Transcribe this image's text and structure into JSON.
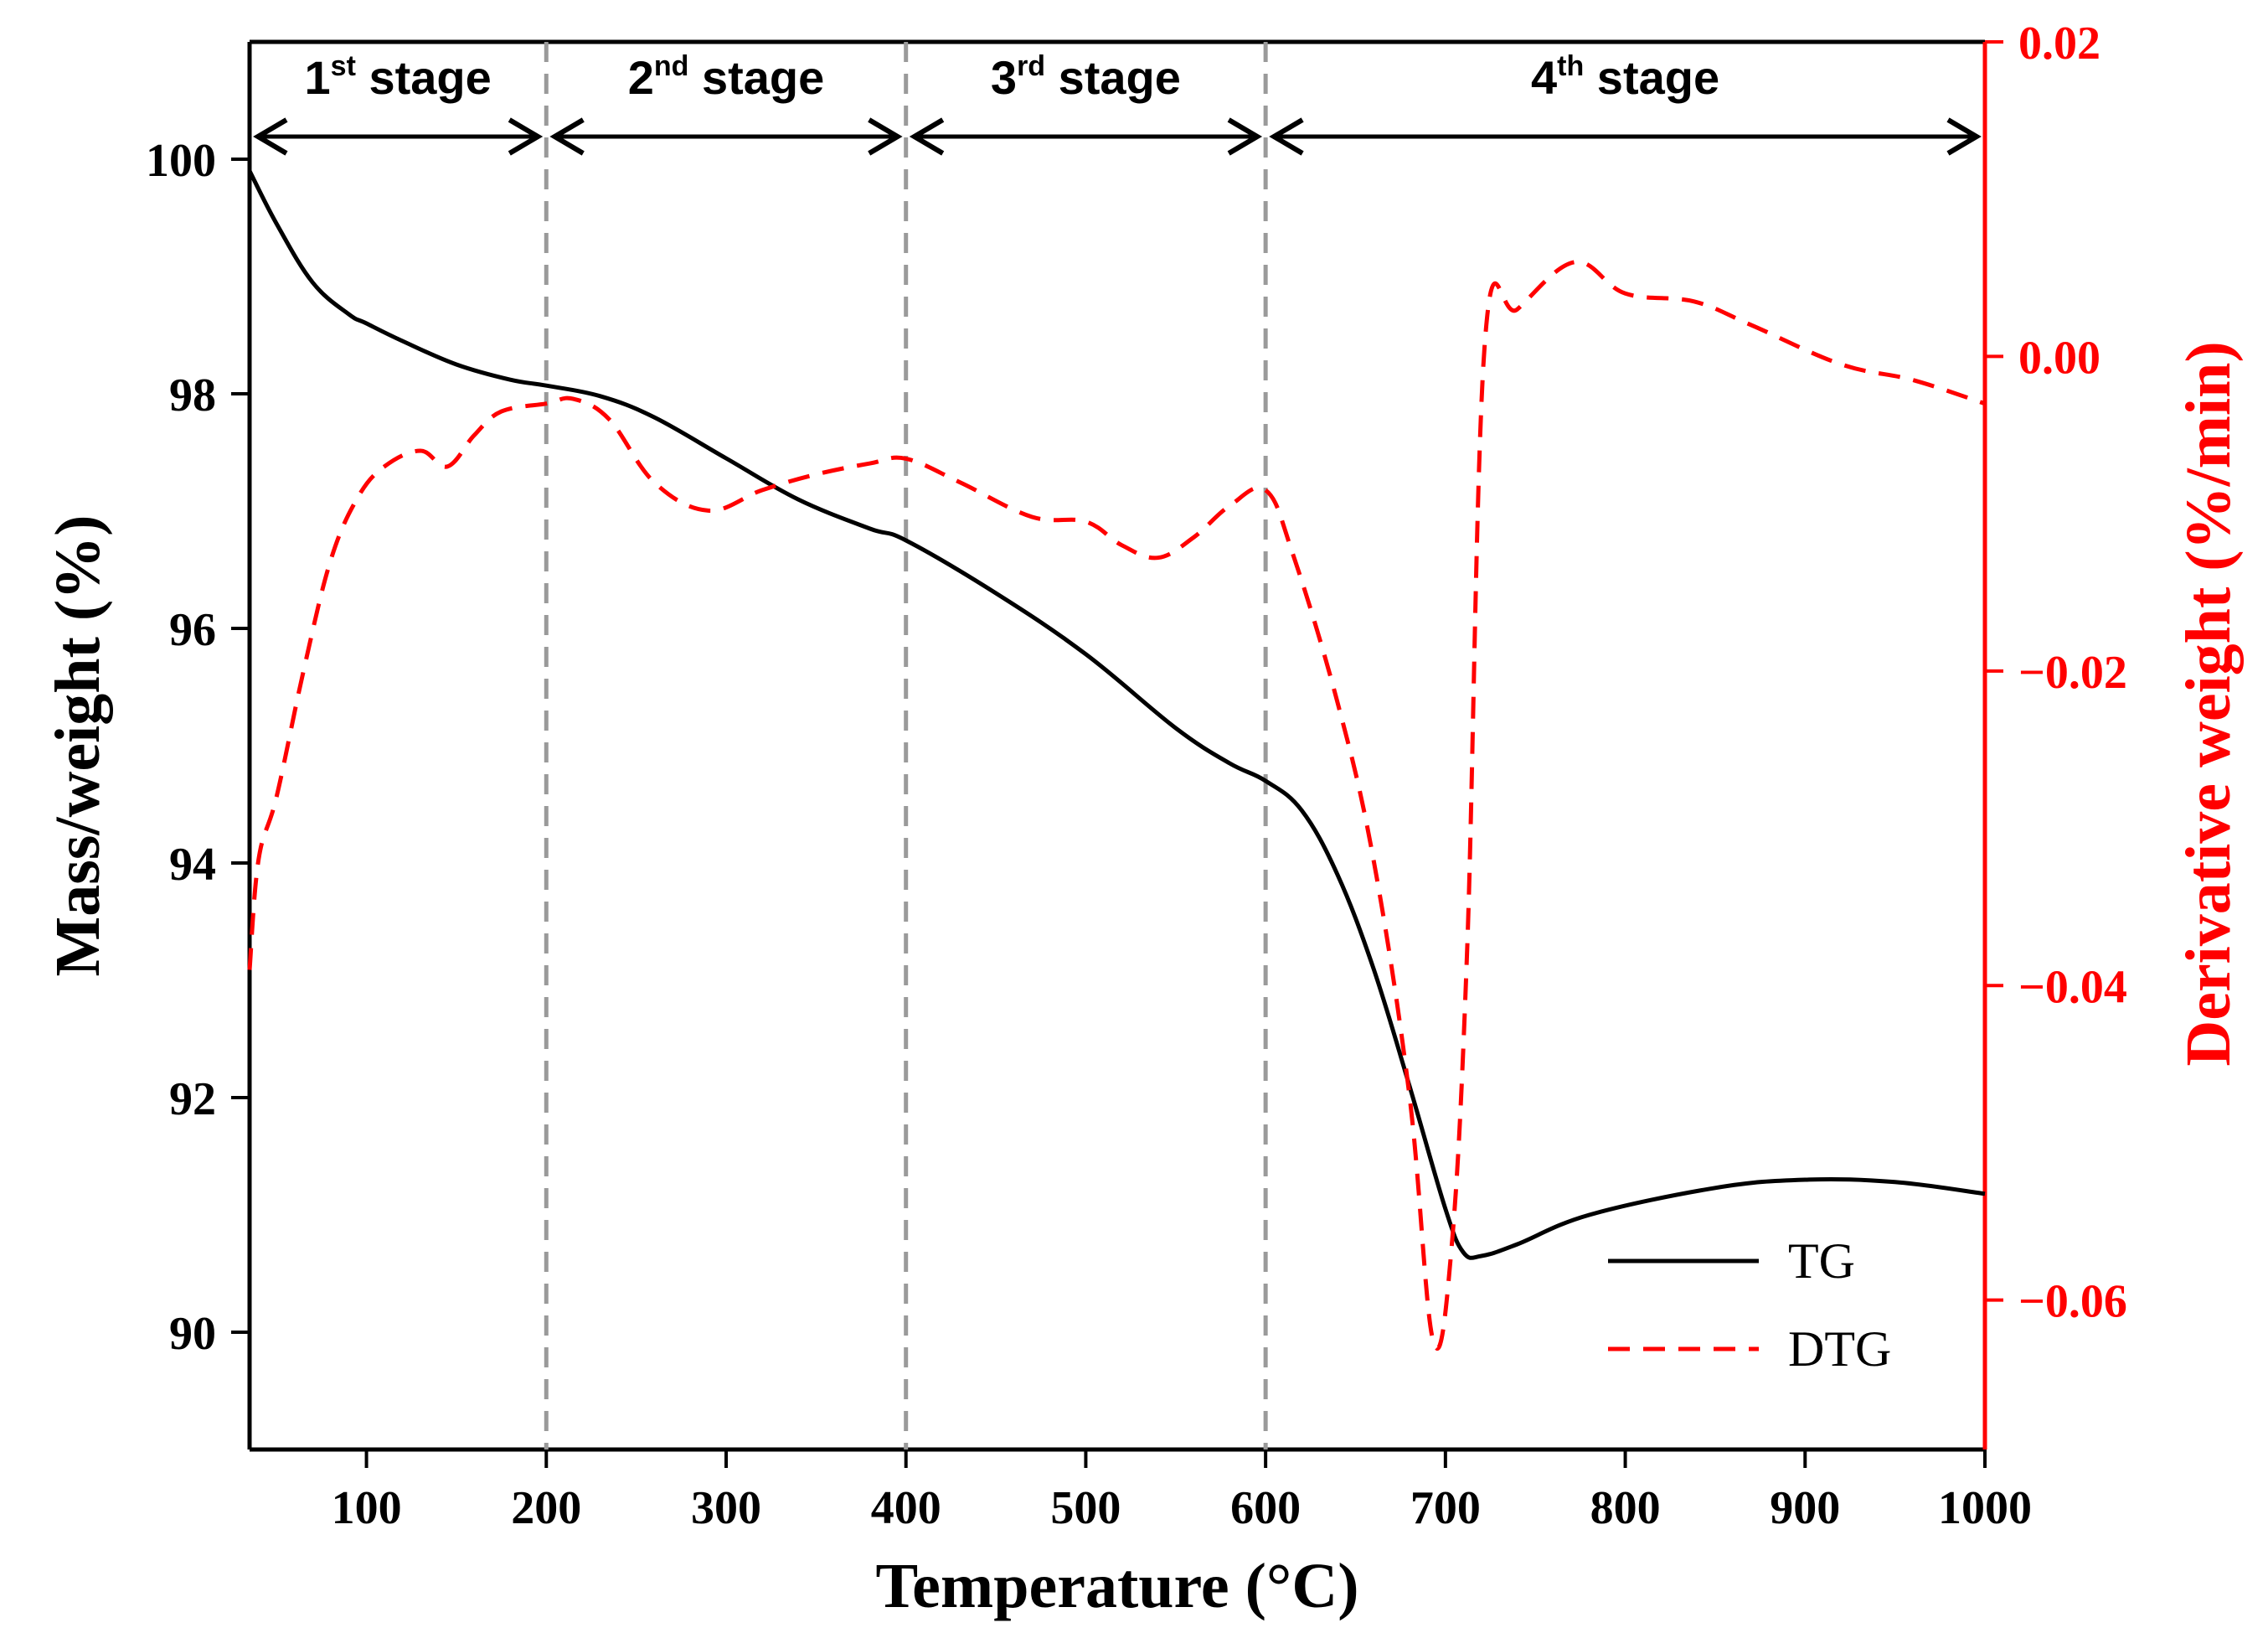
{
  "colors": {
    "tg": "#000000",
    "dtg": "#ff0000",
    "divider": "#9a9a9a",
    "axis_left": "#000000",
    "axis_right": "#ff0000"
  },
  "chart_data": {
    "type": "line",
    "xlabel": "Temperature (°C)",
    "ylabel": "Mass/weight (%)",
    "y2label": "Derivative weight (%/min)",
    "xlim": [
      35,
      1000
    ],
    "ylim": [
      89,
      101
    ],
    "y2lim": [
      -0.0695,
      0.02
    ],
    "x_ticks": [
      100,
      200,
      300,
      400,
      500,
      600,
      700,
      800,
      900,
      1000
    ],
    "x_tick_labels": [
      "100",
      "200",
      "300",
      "400",
      "500",
      "600",
      "700",
      "800",
      "900",
      "1000"
    ],
    "y_ticks": [
      90,
      92,
      94,
      96,
      98,
      100
    ],
    "y_tick_labels": [
      "90",
      "92",
      "94",
      "96",
      "98",
      "100"
    ],
    "y2_ticks": [
      0.02,
      0.0,
      -0.02,
      -0.04,
      -0.06
    ],
    "y2_tick_labels": [
      "0.02",
      "0.00",
      "−0.02",
      "−0.04",
      "−0.06"
    ],
    "stage_boundaries": [
      200,
      400,
      600
    ],
    "stages": [
      {
        "num": "1",
        "sup": "st",
        "word": " stage",
        "from": 35,
        "to": 200
      },
      {
        "num": "2",
        "sup": "nd",
        "word": " stage",
        "from": 200,
        "to": 400
      },
      {
        "num": "3",
        "sup": "rd",
        "word": " stage",
        "from": 400,
        "to": 600
      },
      {
        "num": "4",
        "sup": "th",
        "word": " stage",
        "from": 600,
        "to": 1000
      }
    ],
    "legend": {
      "position": "bottom-right",
      "entries": [
        {
          "name": "TG",
          "style": "solid"
        },
        {
          "name": "DTG",
          "style": "dashed"
        }
      ]
    },
    "series": [
      {
        "name": "TG",
        "axis": "left",
        "style": "solid",
        "x": [
          35,
          50,
          70,
          90,
          100,
          120,
          150,
          180,
          200,
          230,
          260,
          300,
          340,
          380,
          400,
          450,
          500,
          550,
          580,
          600,
          620,
          640,
          660,
          680,
          700,
          710,
          720,
          740,
          780,
          850,
          900,
          950,
          1000
        ],
        "y": [
          99.9,
          99.45,
          98.95,
          98.68,
          98.6,
          98.45,
          98.25,
          98.12,
          98.07,
          97.98,
          97.8,
          97.45,
          97.1,
          96.85,
          96.75,
          96.3,
          95.78,
          95.15,
          94.85,
          94.7,
          94.45,
          93.9,
          93.1,
          92.1,
          91.05,
          90.68,
          90.65,
          90.75,
          91.0,
          91.23,
          91.3,
          91.28,
          91.18
        ]
      },
      {
        "name": "DTG",
        "axis": "right",
        "style": "dashed",
        "x": [
          35,
          40,
          50,
          65,
          80,
          95,
          110,
          130,
          145,
          160,
          175,
          200,
          215,
          235,
          260,
          290,
          320,
          350,
          380,
          400,
          430,
          470,
          500,
          520,
          540,
          560,
          580,
          600,
          615,
          640,
          660,
          680,
          693,
          703,
          712,
          722,
          740,
          772,
          800,
          838,
          870,
          920,
          960,
          1000
        ],
        "y": [
          -0.039,
          -0.032,
          -0.028,
          -0.02,
          -0.013,
          -0.009,
          -0.007,
          -0.006,
          -0.007,
          -0.005,
          -0.0035,
          -0.003,
          -0.0027,
          -0.004,
          -0.008,
          -0.0098,
          -0.0085,
          -0.0075,
          -0.0068,
          -0.0065,
          -0.008,
          -0.0102,
          -0.0105,
          -0.012,
          -0.0128,
          -0.0115,
          -0.0095,
          -0.0085,
          -0.0125,
          -0.022,
          -0.032,
          -0.047,
          -0.0625,
          -0.0572,
          -0.038,
          0.001,
          0.003,
          0.006,
          0.004,
          0.0035,
          0.002,
          -0.0005,
          -0.0015,
          -0.003
        ]
      }
    ]
  }
}
